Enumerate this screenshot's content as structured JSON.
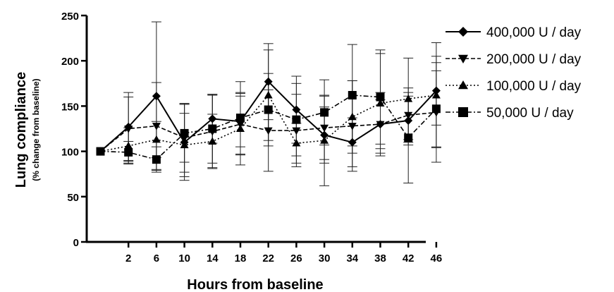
{
  "chart_data": {
    "type": "line",
    "xlabel": "Hours from baseline",
    "ylabel": "Lung  compliance",
    "ylabel_sub": "(% change from baseline)",
    "x_ticks": [
      2,
      6,
      10,
      14,
      18,
      22,
      26,
      30,
      34,
      38,
      42,
      46
    ],
    "y_ticks": [
      0,
      50,
      100,
      150,
      200,
      250
    ],
    "ylim": [
      0,
      250
    ],
    "xlim": [
      -3,
      47
    ],
    "legend_position": "right",
    "error_bars": true,
    "series": [
      {
        "name": "400,000 U / day",
        "marker": "diamond",
        "line": "solid",
        "x": [
          -2,
          2,
          6,
          10,
          14,
          18,
          22,
          26,
          30,
          34,
          38,
          42,
          46
        ],
        "y": [
          100,
          127,
          161,
          110,
          136,
          133,
          177,
          146,
          118,
          110,
          130,
          134,
          167
        ],
        "err": [
          0,
          38,
          82,
          42,
          27,
          28,
          42,
          37,
          31,
          27,
          27,
          27,
          38
        ]
      },
      {
        "name": "200,000 U / day",
        "marker": "triangle-down",
        "line": "dash",
        "x": [
          -2,
          2,
          6,
          10,
          14,
          18,
          22,
          26,
          30,
          34,
          38,
          42,
          46
        ],
        "y": [
          100,
          125,
          128,
          115,
          122,
          130,
          123,
          123,
          126,
          128,
          130,
          140,
          143
        ],
        "err": [
          0,
          35,
          48,
          38,
          40,
          34,
          45,
          40,
          35,
          50,
          35,
          30,
          55
        ]
      },
      {
        "name": "100,000 U / day",
        "marker": "triangle-up",
        "line": "dot",
        "x": [
          -2,
          2,
          6,
          10,
          14,
          18,
          22,
          26,
          30,
          34,
          38,
          42,
          46
        ],
        "y": [
          100,
          106,
          113,
          107,
          111,
          125,
          162,
          109,
          112,
          138,
          153,
          158,
          162
        ],
        "err": [
          0,
          20,
          20,
          35,
          30,
          40,
          50,
          22,
          50,
          40,
          55,
          45,
          58
        ]
      },
      {
        "name": "50,000 U / day",
        "marker": "square",
        "line": "dashdot",
        "x": [
          -2,
          2,
          6,
          10,
          14,
          18,
          22,
          26,
          30,
          34,
          38,
          42,
          46
        ],
        "y": [
          100,
          99,
          91,
          120,
          125,
          137,
          146,
          135,
          143,
          162,
          160,
          115,
          147
        ],
        "err": [
          0,
          12,
          14,
          32,
          38,
          40,
          40,
          40,
          36,
          56,
          52,
          50,
          42
        ]
      }
    ]
  }
}
